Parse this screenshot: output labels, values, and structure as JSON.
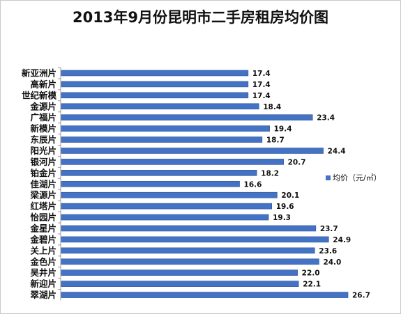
{
  "chart_data": {
    "type": "bar",
    "orientation": "horizontal",
    "title": "2013年9月份昆明市二手房租房均价图",
    "categories": [
      "新亚洲片",
      "高新片",
      "世纪新模",
      "金源片",
      "广福片",
      "新模片",
      "东辰片",
      "阳光片",
      "银河片",
      "铂金片",
      "佳湖片",
      "梁源片",
      "红塔片",
      "怡园片",
      "金星片",
      "金碧片",
      "关上片",
      "金色片",
      "吴井片",
      "新迎片",
      "翠湖片"
    ],
    "series": [
      {
        "name": "均价（元/㎡）",
        "values": [
          17.4,
          17.4,
          17.4,
          18.4,
          23.4,
          19.4,
          18.7,
          24.4,
          20.7,
          18.2,
          16.6,
          20.1,
          19.6,
          19.3,
          23.7,
          24.9,
          23.6,
          24.0,
          22.0,
          22.1,
          26.7
        ],
        "labels": [
          "17.4",
          "17.4",
          "17.4",
          "18.4",
          "23.4",
          "19.4",
          "18.7",
          "24.4",
          "20.7",
          "18.2",
          "16.6",
          "20.1",
          "19.6",
          "19.3",
          "23.7",
          "24.9",
          "23.6",
          "24.0",
          "22.0",
          "22.1",
          "26.7"
        ]
      }
    ],
    "legend_position": "right",
    "grid": false,
    "bar_color": "#4472c4"
  }
}
